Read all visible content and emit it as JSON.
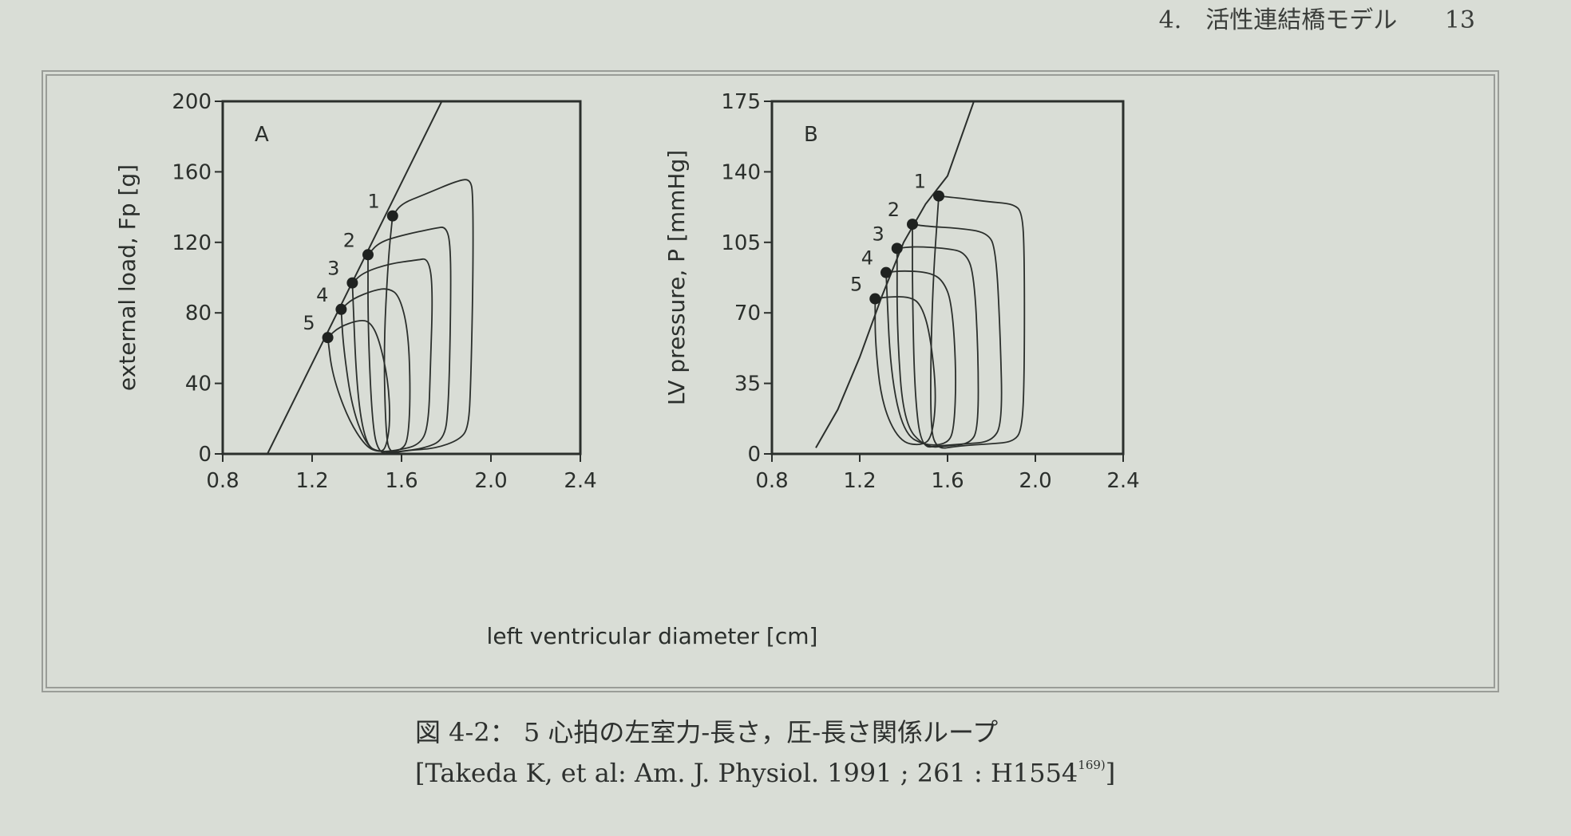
{
  "header": {
    "section": "4.　活性連結橋モデル",
    "page_number": "13"
  },
  "figure": {
    "caption": "図 4-2： 5 心拍の左室力-長さ，圧-長さ関係ループ",
    "citation_main": "[Takeda K, et al: Am. J. Physiol. 1991 ; 261 : H1554",
    "citation_ref": "169)",
    "citation_end": "]",
    "shared_xlabel": "left ventricular diameter [cm]"
  },
  "chart_data": [
    {
      "type": "line",
      "panel_label": "A",
      "ylabel": "external load, Fp [g]",
      "xlim": [
        0.8,
        2.4
      ],
      "ylim": [
        0,
        200
      ],
      "xticks": [
        "0.8",
        "1.2",
        "1.6",
        "2.0",
        "2.4"
      ],
      "yticks": [
        "0",
        "40",
        "80",
        "120",
        "160",
        "200"
      ],
      "end_systolic_line": {
        "x": [
          1.0,
          1.78
        ],
        "y": [
          0,
          200
        ]
      },
      "end_systolic_points": [
        {
          "label": "1",
          "x": 1.56,
          "y": 135
        },
        {
          "label": "2",
          "x": 1.45,
          "y": 113
        },
        {
          "label": "3",
          "x": 1.38,
          "y": 97
        },
        {
          "label": "4",
          "x": 1.33,
          "y": 82
        },
        {
          "label": "5",
          "x": 1.27,
          "y": 66
        }
      ],
      "series": [
        {
          "points": [
            [
              1.56,
              135
            ],
            [
              1.6,
              142
            ],
            [
              1.7,
              147
            ],
            [
              1.85,
              155
            ],
            [
              1.91,
              156
            ],
            [
              1.92,
              145
            ],
            [
              1.92,
              100
            ],
            [
              1.91,
              40
            ],
            [
              1.9,
              15
            ],
            [
              1.86,
              8
            ],
            [
              1.75,
              3
            ],
            [
              1.62,
              2
            ],
            [
              1.55,
              0
            ],
            [
              1.53,
              10
            ],
            [
              1.52,
              60
            ],
            [
              1.54,
              110
            ],
            [
              1.56,
              135
            ]
          ]
        },
        {
          "points": [
            [
              1.45,
              113
            ],
            [
              1.5,
              120
            ],
            [
              1.6,
              124
            ],
            [
              1.75,
              128
            ],
            [
              1.8,
              129
            ],
            [
              1.82,
              118
            ],
            [
              1.82,
              80
            ],
            [
              1.81,
              25
            ],
            [
              1.79,
              8
            ],
            [
              1.7,
              3
            ],
            [
              1.56,
              1
            ],
            [
              1.5,
              0
            ],
            [
              1.47,
              15
            ],
            [
              1.45,
              70
            ],
            [
              1.45,
              113
            ]
          ]
        },
        {
          "points": [
            [
              1.38,
              97
            ],
            [
              1.43,
              103
            ],
            [
              1.55,
              108
            ],
            [
              1.67,
              110
            ],
            [
              1.72,
              111
            ],
            [
              1.74,
              95
            ],
            [
              1.73,
              50
            ],
            [
              1.72,
              15
            ],
            [
              1.68,
              5
            ],
            [
              1.58,
              2
            ],
            [
              1.5,
              1
            ],
            [
              1.44,
              5
            ],
            [
              1.4,
              35
            ],
            [
              1.38,
              97
            ]
          ]
        },
        {
          "points": [
            [
              1.33,
              82
            ],
            [
              1.38,
              88
            ],
            [
              1.48,
              93
            ],
            [
              1.54,
              94
            ],
            [
              1.59,
              90
            ],
            [
              1.63,
              70
            ],
            [
              1.64,
              35
            ],
            [
              1.63,
              8
            ],
            [
              1.6,
              2
            ],
            [
              1.52,
              1
            ],
            [
              1.45,
              3
            ],
            [
              1.38,
              25
            ],
            [
              1.34,
              60
            ],
            [
              1.33,
              82
            ]
          ]
        },
        {
          "points": [
            [
              1.27,
              66
            ],
            [
              1.32,
              72
            ],
            [
              1.41,
              76
            ],
            [
              1.46,
              75
            ],
            [
              1.5,
              65
            ],
            [
              1.54,
              42
            ],
            [
              1.55,
              18
            ],
            [
              1.53,
              3
            ],
            [
              1.5,
              1
            ],
            [
              1.44,
              4
            ],
            [
              1.36,
              20
            ],
            [
              1.29,
              45
            ],
            [
              1.27,
              66
            ]
          ]
        }
      ]
    },
    {
      "type": "line",
      "panel_label": "B",
      "ylabel": "LV pressure, P [mmHg]",
      "xlim": [
        0.8,
        2.4
      ],
      "ylim": [
        0,
        175
      ],
      "xticks": [
        "0.8",
        "1.2",
        "1.6",
        "2.0",
        "2.4"
      ],
      "yticks": [
        "0",
        "35",
        "70",
        "105",
        "140",
        "175"
      ],
      "end_systolic_line": {
        "x": [
          1.0,
          1.1,
          1.2,
          1.3,
          1.4,
          1.5,
          1.6,
          1.72
        ],
        "y": [
          3,
          22,
          48,
          78,
          105,
          124,
          138,
          175
        ]
      },
      "end_systolic_points": [
        {
          "label": "1",
          "x": 1.56,
          "y": 128
        },
        {
          "label": "2",
          "x": 1.44,
          "y": 114
        },
        {
          "label": "3",
          "x": 1.37,
          "y": 102
        },
        {
          "label": "4",
          "x": 1.32,
          "y": 90
        },
        {
          "label": "5",
          "x": 1.27,
          "y": 77
        }
      ],
      "series": [
        {
          "points": [
            [
              1.56,
              128
            ],
            [
              1.65,
              127
            ],
            [
              1.8,
              125
            ],
            [
              1.9,
              124
            ],
            [
              1.94,
              120
            ],
            [
              1.95,
              100
            ],
            [
              1.95,
              40
            ],
            [
              1.94,
              12
            ],
            [
              1.9,
              6
            ],
            [
              1.8,
              5
            ],
            [
              1.65,
              4
            ],
            [
              1.54,
              2
            ],
            [
              1.52,
              20
            ],
            [
              1.53,
              80
            ],
            [
              1.56,
              128
            ]
          ]
        },
        {
          "points": [
            [
              1.44,
              114
            ],
            [
              1.5,
              113
            ],
            [
              1.65,
              112
            ],
            [
              1.78,
              110
            ],
            [
              1.82,
              102
            ],
            [
              1.84,
              60
            ],
            [
              1.85,
              15
            ],
            [
              1.8,
              6
            ],
            [
              1.68,
              5
            ],
            [
              1.56,
              4
            ],
            [
              1.48,
              3
            ],
            [
              1.45,
              30
            ],
            [
              1.44,
              80
            ],
            [
              1.44,
              114
            ]
          ]
        },
        {
          "points": [
            [
              1.37,
              102
            ],
            [
              1.45,
              103
            ],
            [
              1.6,
              102
            ],
            [
              1.68,
              100
            ],
            [
              1.72,
              90
            ],
            [
              1.74,
              50
            ],
            [
              1.74,
              12
            ],
            [
              1.7,
              5
            ],
            [
              1.6,
              4
            ],
            [
              1.5,
              3
            ],
            [
              1.4,
              15
            ],
            [
              1.37,
              60
            ],
            [
              1.37,
              102
            ]
          ]
        },
        {
          "points": [
            [
              1.32,
              90
            ],
            [
              1.4,
              91
            ],
            [
              1.52,
              90
            ],
            [
              1.58,
              86
            ],
            [
              1.62,
              75
            ],
            [
              1.64,
              40
            ],
            [
              1.63,
              12
            ],
            [
              1.6,
              5
            ],
            [
              1.5,
              4
            ],
            [
              1.4,
              10
            ],
            [
              1.34,
              40
            ],
            [
              1.32,
              90
            ]
          ]
        },
        {
          "points": [
            [
              1.27,
              77
            ],
            [
              1.33,
              78
            ],
            [
              1.43,
              78
            ],
            [
              1.48,
              74
            ],
            [
              1.52,
              60
            ],
            [
              1.55,
              30
            ],
            [
              1.53,
              8
            ],
            [
              1.48,
              4
            ],
            [
              1.38,
              6
            ],
            [
              1.3,
              25
            ],
            [
              1.27,
              55
            ],
            [
              1.27,
              77
            ]
          ]
        }
      ]
    }
  ]
}
